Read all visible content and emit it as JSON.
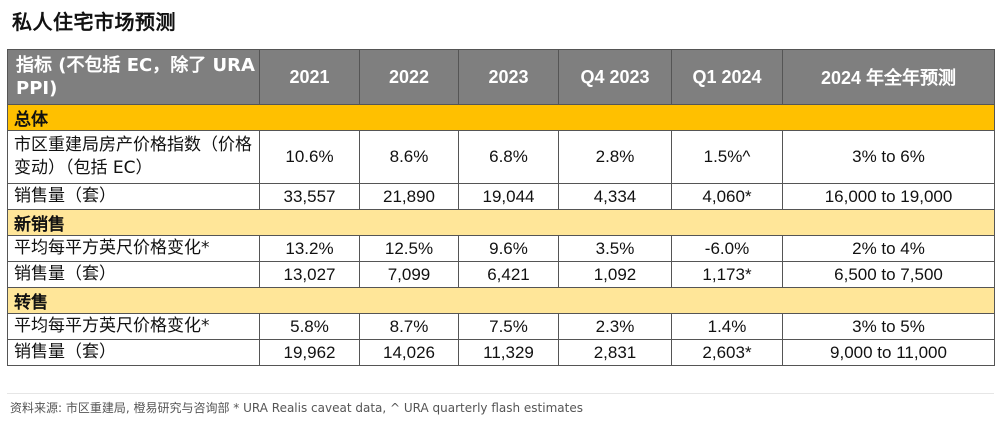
{
  "title": "私人住宅市场预测",
  "table": {
    "headers": [
      "指标 (不包括 EC，除了 URA PPI)",
      "2021",
      "2022",
      "2023",
      "Q4 2023",
      "Q1 2024",
      "2024 年全年预测"
    ],
    "sections": [
      {
        "name": "总体",
        "rows": [
          {
            "label": "市区重建局房产价格指数（价格变动）（包括 EC）",
            "values": [
              "10.6%",
              "8.6%",
              "6.8%",
              "2.8%",
              "1.5%^",
              "3% to 6%"
            ]
          },
          {
            "label": "销售量（套）",
            "values": [
              "33,557",
              "21,890",
              "19,044",
              "4,334",
              "4,060*",
              "16,000 to 19,000"
            ]
          }
        ]
      },
      {
        "name": "新销售",
        "rows": [
          {
            "label": "平均每平方英尺价格变化*",
            "values": [
              "13.2%",
              "12.5%",
              "9.6%",
              "3.5%",
              "-6.0%",
              "2% to 4%"
            ]
          },
          {
            "label": "销售量（套）",
            "values": [
              "13,027",
              "7,099",
              "6,421",
              "1,092",
              "1,173*",
              "6,500 to 7,500"
            ]
          }
        ]
      },
      {
        "name": "转售",
        "rows": [
          {
            "label": "平均每平方英尺价格变化*",
            "values": [
              "5.8%",
              "8.7%",
              "7.5%",
              "2.3%",
              "1.4%",
              "3% to 5%"
            ]
          },
          {
            "label": "销售量（套）",
            "values": [
              "19,962",
              "14,026",
              "11,329",
              "2,831",
              "2,603*",
              "9,000 to 11,000"
            ]
          }
        ]
      }
    ]
  },
  "source": "资料来源: 市区重建局, 橙易研究与咨询部 * URA Realis caveat data, ^ URA quarterly flash estimates",
  "colors": {
    "header_bg": "#7f7f7f",
    "section_primary": "#ffc000",
    "section_light": "#ffe699"
  }
}
